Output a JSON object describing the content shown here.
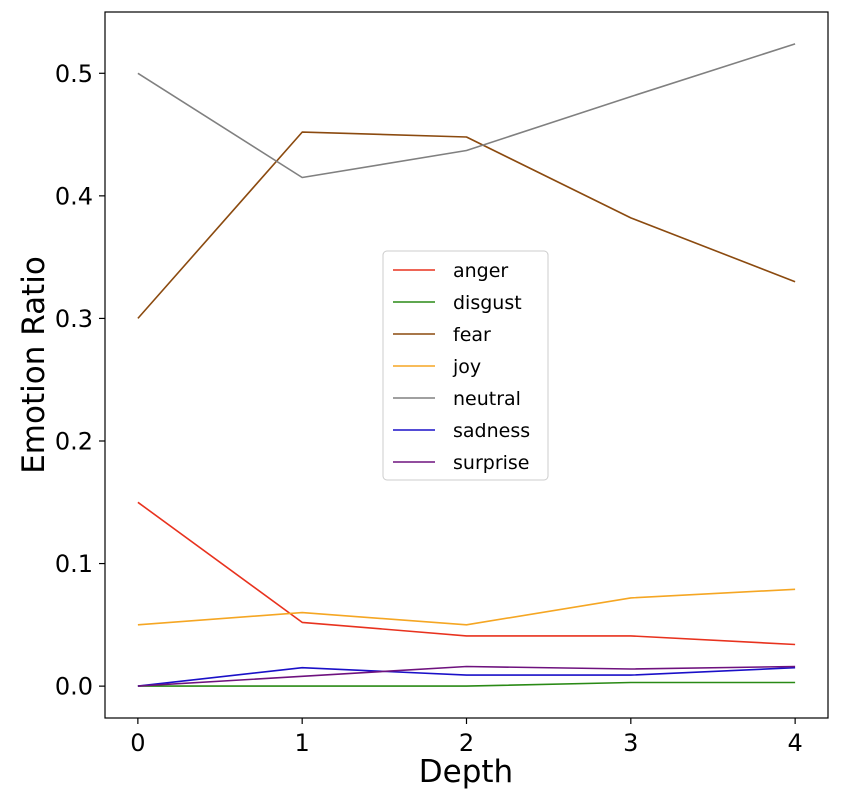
{
  "chart_data": {
    "type": "line",
    "title": "",
    "xlabel": "Depth",
    "ylabel": "Emotion Ratio",
    "x": [
      0,
      1,
      2,
      3,
      4
    ],
    "xticks": [
      "0",
      "1",
      "2",
      "3",
      "4"
    ],
    "yticks": [
      "0.0",
      "0.1",
      "0.2",
      "0.3",
      "0.4",
      "0.5"
    ],
    "xlim": [
      -0.2,
      4.2
    ],
    "ylim": [
      -0.026,
      0.55
    ],
    "grid": false,
    "legend_position": "center",
    "series": [
      {
        "name": "anger",
        "color": "#e8321e",
        "values": [
          0.15,
          0.052,
          0.041,
          0.041,
          0.034
        ]
      },
      {
        "name": "disgust",
        "color": "#2a8a16",
        "values": [
          0.0,
          0.0,
          0.0,
          0.003,
          0.003
        ]
      },
      {
        "name": "fear",
        "color": "#8b4a0f",
        "values": [
          0.3,
          0.452,
          0.448,
          0.382,
          0.33
        ]
      },
      {
        "name": "joy",
        "color": "#f5a623",
        "values": [
          0.05,
          0.06,
          0.05,
          0.072,
          0.079
        ]
      },
      {
        "name": "neutral",
        "color": "#808080",
        "values": [
          0.5,
          0.415,
          0.437,
          0.481,
          0.524
        ]
      },
      {
        "name": "sadness",
        "color": "#1a10c8",
        "values": [
          0.0,
          0.015,
          0.009,
          0.009,
          0.015
        ]
      },
      {
        "name": "surprise",
        "color": "#6e127e",
        "values": [
          0.0,
          0.008,
          0.016,
          0.014,
          0.016
        ]
      }
    ]
  }
}
